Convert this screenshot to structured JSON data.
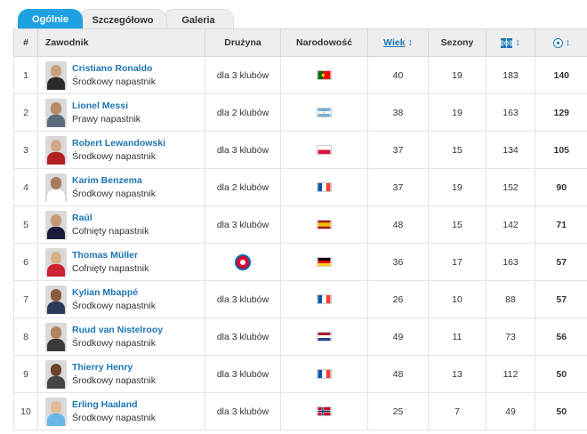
{
  "tabs": [
    {
      "label": "Ogólnie",
      "active": true
    },
    {
      "label": "Szczegółowo",
      "active": false
    },
    {
      "label": "Galeria",
      "active": false
    }
  ],
  "columns": {
    "rank": "#",
    "player": "Zawodnik",
    "team": "Drużyna",
    "nationality": "Narodowość",
    "age": "Wiek",
    "seasons": "Sezony",
    "matches_icon": "pitch-icon",
    "goals_icon": "ball-icon"
  },
  "colors": {
    "accent": "#1da1e2",
    "link": "#1d75b3"
  },
  "rows": [
    {
      "rank": "1",
      "name": "Cristiano Ronaldo",
      "position": "Środkowy napastnik",
      "team": "dla 3 klubów",
      "flag": "portugal",
      "age": "40",
      "seasons": "19",
      "matches": "183",
      "goals": "140"
    },
    {
      "rank": "2",
      "name": "Lionel Messi",
      "position": "Prawy napastnik",
      "team": "dla 2 klubów",
      "flag": "argentina",
      "age": "38",
      "seasons": "19",
      "matches": "163",
      "goals": "129"
    },
    {
      "rank": "3",
      "name": "Robert Lewandowski",
      "position": "Środkowy napastnik",
      "team": "dla 3 klubów",
      "flag": "poland",
      "age": "37",
      "seasons": "15",
      "matches": "134",
      "goals": "105"
    },
    {
      "rank": "4",
      "name": "Karim Benzema",
      "position": "Środkowy napastnik",
      "team": "dla 2 klubów",
      "flag": "france",
      "age": "37",
      "seasons": "19",
      "matches": "152",
      "goals": "90"
    },
    {
      "rank": "5",
      "name": "Raúl",
      "position": "Cofnięty napastnik",
      "team": "dla 3 klubów",
      "flag": "spain",
      "age": "48",
      "seasons": "15",
      "matches": "142",
      "goals": "71"
    },
    {
      "rank": "6",
      "name": "Thomas Müller",
      "position": "Cofnięty napastnik",
      "team": "",
      "club_icon": "bayern-munich-crest-icon",
      "flag": "germany",
      "age": "36",
      "seasons": "17",
      "matches": "163",
      "goals": "57"
    },
    {
      "rank": "7",
      "name": "Kylian Mbappé",
      "position": "Środkowy napastnik",
      "team": "dla 3 klubów",
      "flag": "france",
      "age": "26",
      "seasons": "10",
      "matches": "88",
      "goals": "57"
    },
    {
      "rank": "8",
      "name": "Ruud van Nistelrooy",
      "position": "Środkowy napastnik",
      "team": "dla 3 klubów",
      "flag": "netherlands",
      "age": "49",
      "seasons": "11",
      "matches": "73",
      "goals": "56"
    },
    {
      "rank": "9",
      "name": "Thierry Henry",
      "position": "Środkowy napastnik",
      "team": "dla 3 klubów",
      "flag": "france",
      "age": "48",
      "seasons": "13",
      "matches": "112",
      "goals": "50"
    },
    {
      "rank": "10",
      "name": "Erling Haaland",
      "position": "Środkowy napastnik",
      "team": "dla 3 klubów",
      "flag": "norway",
      "age": "25",
      "seasons": "7",
      "matches": "49",
      "goals": "50"
    }
  ]
}
